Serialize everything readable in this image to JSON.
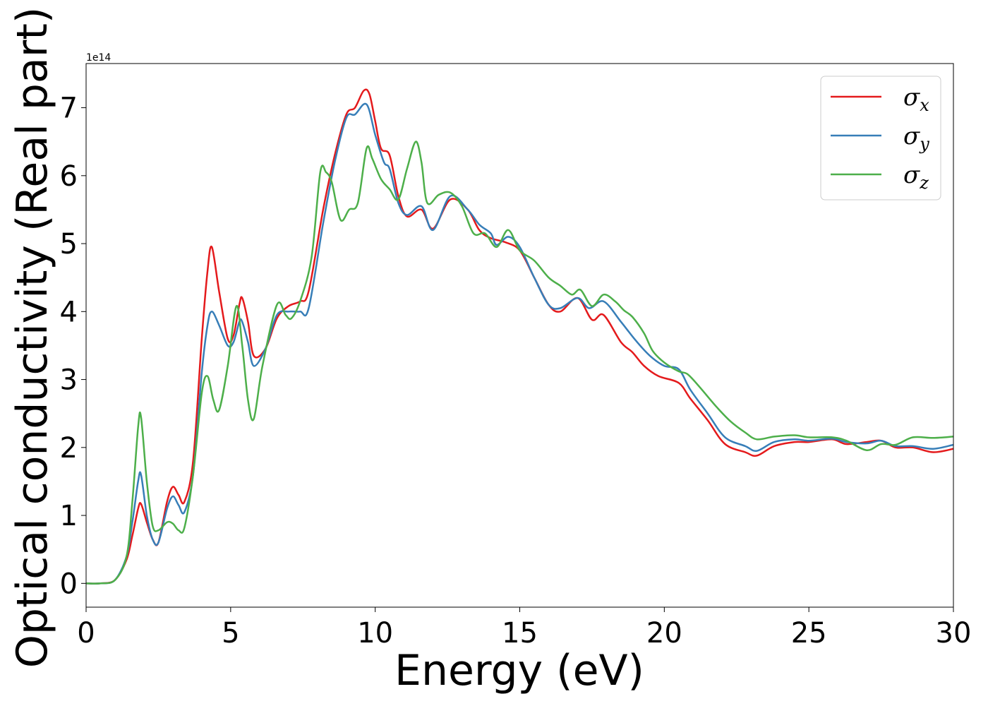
{
  "chart_data": {
    "type": "line",
    "title": "",
    "xlabel": "Energy (eV)",
    "ylabel": "Optical conductivity (Real part)",
    "y_offset_label": "1e14",
    "xlim": [
      0,
      30
    ],
    "ylim": [
      -0.35,
      7.65
    ],
    "x_ticks": [
      0,
      5,
      10,
      15,
      20,
      25,
      30
    ],
    "y_ticks": [
      0,
      1,
      2,
      3,
      4,
      5,
      6,
      7
    ],
    "grid": false,
    "legend_position": "top-right",
    "series": [
      {
        "name": "σx",
        "symbol": "σ",
        "subscript": "x",
        "color": "#e41a1c",
        "points": [
          [
            0,
            0
          ],
          [
            0.5,
            0
          ],
          [
            1.0,
            0.05
          ],
          [
            1.4,
            0.35
          ],
          [
            1.6,
            0.7
          ],
          [
            1.8,
            1.1
          ],
          [
            1.9,
            1.17
          ],
          [
            2.1,
            0.9
          ],
          [
            2.3,
            0.65
          ],
          [
            2.5,
            0.6
          ],
          [
            2.8,
            1.2
          ],
          [
            3.0,
            1.42
          ],
          [
            3.2,
            1.3
          ],
          [
            3.4,
            1.2
          ],
          [
            3.7,
            1.8
          ],
          [
            4.0,
            3.6
          ],
          [
            4.2,
            4.6
          ],
          [
            4.35,
            4.95
          ],
          [
            4.6,
            4.3
          ],
          [
            4.9,
            3.6
          ],
          [
            5.1,
            3.65
          ],
          [
            5.3,
            4.1
          ],
          [
            5.4,
            4.2
          ],
          [
            5.6,
            3.85
          ],
          [
            5.8,
            3.35
          ],
          [
            6.2,
            3.45
          ],
          [
            6.6,
            3.9
          ],
          [
            7.0,
            4.08
          ],
          [
            7.4,
            4.15
          ],
          [
            7.7,
            4.3
          ],
          [
            8.2,
            5.5
          ],
          [
            8.6,
            6.3
          ],
          [
            9.0,
            6.9
          ],
          [
            9.3,
            7.0
          ],
          [
            9.6,
            7.25
          ],
          [
            9.8,
            7.2
          ],
          [
            10.0,
            6.8
          ],
          [
            10.2,
            6.4
          ],
          [
            10.5,
            6.3
          ],
          [
            10.8,
            5.7
          ],
          [
            11.1,
            5.4
          ],
          [
            11.6,
            5.5
          ],
          [
            12.0,
            5.22
          ],
          [
            12.6,
            5.65
          ],
          [
            13.2,
            5.5
          ],
          [
            13.6,
            5.2
          ],
          [
            14.0,
            5.08
          ],
          [
            14.5,
            5.02
          ],
          [
            15.0,
            4.9
          ],
          [
            15.5,
            4.5
          ],
          [
            16.0,
            4.1
          ],
          [
            16.4,
            4.0
          ],
          [
            17.0,
            4.2
          ],
          [
            17.5,
            3.88
          ],
          [
            17.9,
            3.95
          ],
          [
            18.5,
            3.55
          ],
          [
            18.9,
            3.4
          ],
          [
            19.3,
            3.2
          ],
          [
            19.8,
            3.05
          ],
          [
            20.5,
            2.95
          ],
          [
            20.9,
            2.72
          ],
          [
            21.5,
            2.4
          ],
          [
            22.1,
            2.05
          ],
          [
            22.8,
            1.93
          ],
          [
            23.2,
            1.88
          ],
          [
            23.8,
            2.02
          ],
          [
            24.5,
            2.08
          ],
          [
            25.0,
            2.08
          ],
          [
            25.8,
            2.12
          ],
          [
            26.3,
            2.05
          ],
          [
            27.0,
            2.08
          ],
          [
            27.5,
            2.1
          ],
          [
            28.0,
            2.0
          ],
          [
            28.6,
            2.0
          ],
          [
            29.3,
            1.93
          ],
          [
            30,
            1.98
          ]
        ]
      },
      {
        "name": "σy",
        "symbol": "σ",
        "subscript": "y",
        "color": "#377eb8",
        "points": [
          [
            0,
            0
          ],
          [
            0.5,
            0
          ],
          [
            1.0,
            0.05
          ],
          [
            1.4,
            0.4
          ],
          [
            1.6,
            0.9
          ],
          [
            1.8,
            1.5
          ],
          [
            1.9,
            1.6
          ],
          [
            2.1,
            1.0
          ],
          [
            2.3,
            0.65
          ],
          [
            2.5,
            0.6
          ],
          [
            2.8,
            1.1
          ],
          [
            3.0,
            1.28
          ],
          [
            3.2,
            1.15
          ],
          [
            3.4,
            1.05
          ],
          [
            3.7,
            1.6
          ],
          [
            4.0,
            3.1
          ],
          [
            4.2,
            3.8
          ],
          [
            4.35,
            4.0
          ],
          [
            4.6,
            3.8
          ],
          [
            4.9,
            3.5
          ],
          [
            5.1,
            3.55
          ],
          [
            5.3,
            3.85
          ],
          [
            5.4,
            3.85
          ],
          [
            5.6,
            3.55
          ],
          [
            5.8,
            3.2
          ],
          [
            6.2,
            3.45
          ],
          [
            6.6,
            3.95
          ],
          [
            7.0,
            4.0
          ],
          [
            7.4,
            4.0
          ],
          [
            7.7,
            4.05
          ],
          [
            8.2,
            5.3
          ],
          [
            8.6,
            6.2
          ],
          [
            9.0,
            6.85
          ],
          [
            9.3,
            6.9
          ],
          [
            9.7,
            7.05
          ],
          [
            10.0,
            6.6
          ],
          [
            10.3,
            6.2
          ],
          [
            10.5,
            6.1
          ],
          [
            10.8,
            5.6
          ],
          [
            11.1,
            5.42
          ],
          [
            11.6,
            5.55
          ],
          [
            12.0,
            5.2
          ],
          [
            12.6,
            5.7
          ],
          [
            13.2,
            5.5
          ],
          [
            13.6,
            5.28
          ],
          [
            14.0,
            5.15
          ],
          [
            14.2,
            4.98
          ],
          [
            14.6,
            5.1
          ],
          [
            15.0,
            4.95
          ],
          [
            15.5,
            4.5
          ],
          [
            16.0,
            4.1
          ],
          [
            16.4,
            4.05
          ],
          [
            17.0,
            4.2
          ],
          [
            17.4,
            4.05
          ],
          [
            17.9,
            4.15
          ],
          [
            18.5,
            3.85
          ],
          [
            19.0,
            3.58
          ],
          [
            19.5,
            3.35
          ],
          [
            20.0,
            3.2
          ],
          [
            20.5,
            3.15
          ],
          [
            20.9,
            2.85
          ],
          [
            21.5,
            2.5
          ],
          [
            22.1,
            2.15
          ],
          [
            22.8,
            2.02
          ],
          [
            23.2,
            1.95
          ],
          [
            23.8,
            2.08
          ],
          [
            24.5,
            2.12
          ],
          [
            25.0,
            2.1
          ],
          [
            25.8,
            2.13
          ],
          [
            26.3,
            2.08
          ],
          [
            27.0,
            2.06
          ],
          [
            27.5,
            2.1
          ],
          [
            28.0,
            2.02
          ],
          [
            28.6,
            2.02
          ],
          [
            29.3,
            1.98
          ],
          [
            30,
            2.04
          ]
        ]
      },
      {
        "name": "σz",
        "symbol": "σ",
        "subscript": "z",
        "color": "#4daf4a",
        "points": [
          [
            0,
            0
          ],
          [
            0.5,
            0
          ],
          [
            1.0,
            0.05
          ],
          [
            1.4,
            0.4
          ],
          [
            1.6,
            1.2
          ],
          [
            1.8,
            2.3
          ],
          [
            1.9,
            2.45
          ],
          [
            2.1,
            1.5
          ],
          [
            2.3,
            0.85
          ],
          [
            2.5,
            0.78
          ],
          [
            2.8,
            0.9
          ],
          [
            3.0,
            0.88
          ],
          [
            3.2,
            0.78
          ],
          [
            3.4,
            0.82
          ],
          [
            3.7,
            1.6
          ],
          [
            4.0,
            2.8
          ],
          [
            4.2,
            3.05
          ],
          [
            4.4,
            2.7
          ],
          [
            4.6,
            2.55
          ],
          [
            4.9,
            3.2
          ],
          [
            5.2,
            4.08
          ],
          [
            5.4,
            3.5
          ],
          [
            5.6,
            2.7
          ],
          [
            5.8,
            2.42
          ],
          [
            6.1,
            3.2
          ],
          [
            6.6,
            4.1
          ],
          [
            6.9,
            3.95
          ],
          [
            7.1,
            3.9
          ],
          [
            7.4,
            4.15
          ],
          [
            7.8,
            4.8
          ],
          [
            8.1,
            6.05
          ],
          [
            8.3,
            6.05
          ],
          [
            8.5,
            5.9
          ],
          [
            8.8,
            5.35
          ],
          [
            9.1,
            5.5
          ],
          [
            9.4,
            5.6
          ],
          [
            9.7,
            6.4
          ],
          [
            9.9,
            6.25
          ],
          [
            10.2,
            5.95
          ],
          [
            10.5,
            5.8
          ],
          [
            10.8,
            5.65
          ],
          [
            11.1,
            6.1
          ],
          [
            11.4,
            6.5
          ],
          [
            11.6,
            6.2
          ],
          [
            11.8,
            5.6
          ],
          [
            12.2,
            5.72
          ],
          [
            12.6,
            5.75
          ],
          [
            13.0,
            5.55
          ],
          [
            13.4,
            5.15
          ],
          [
            13.8,
            5.15
          ],
          [
            14.2,
            4.95
          ],
          [
            14.6,
            5.2
          ],
          [
            15.0,
            4.9
          ],
          [
            15.5,
            4.75
          ],
          [
            16.0,
            4.5
          ],
          [
            16.4,
            4.38
          ],
          [
            16.8,
            4.25
          ],
          [
            17.1,
            4.32
          ],
          [
            17.5,
            4.08
          ],
          [
            17.9,
            4.25
          ],
          [
            18.3,
            4.15
          ],
          [
            18.6,
            4.02
          ],
          [
            18.9,
            3.92
          ],
          [
            19.3,
            3.68
          ],
          [
            19.6,
            3.42
          ],
          [
            20.0,
            3.25
          ],
          [
            20.5,
            3.12
          ],
          [
            20.8,
            3.08
          ],
          [
            21.2,
            2.9
          ],
          [
            21.8,
            2.6
          ],
          [
            22.3,
            2.38
          ],
          [
            22.8,
            2.22
          ],
          [
            23.2,
            2.12
          ],
          [
            23.8,
            2.16
          ],
          [
            24.5,
            2.18
          ],
          [
            25.0,
            2.15
          ],
          [
            25.8,
            2.15
          ],
          [
            26.3,
            2.1
          ],
          [
            27.0,
            1.96
          ],
          [
            27.5,
            2.05
          ],
          [
            28.0,
            2.04
          ],
          [
            28.6,
            2.15
          ],
          [
            29.3,
            2.14
          ],
          [
            30,
            2.16
          ]
        ]
      }
    ]
  }
}
